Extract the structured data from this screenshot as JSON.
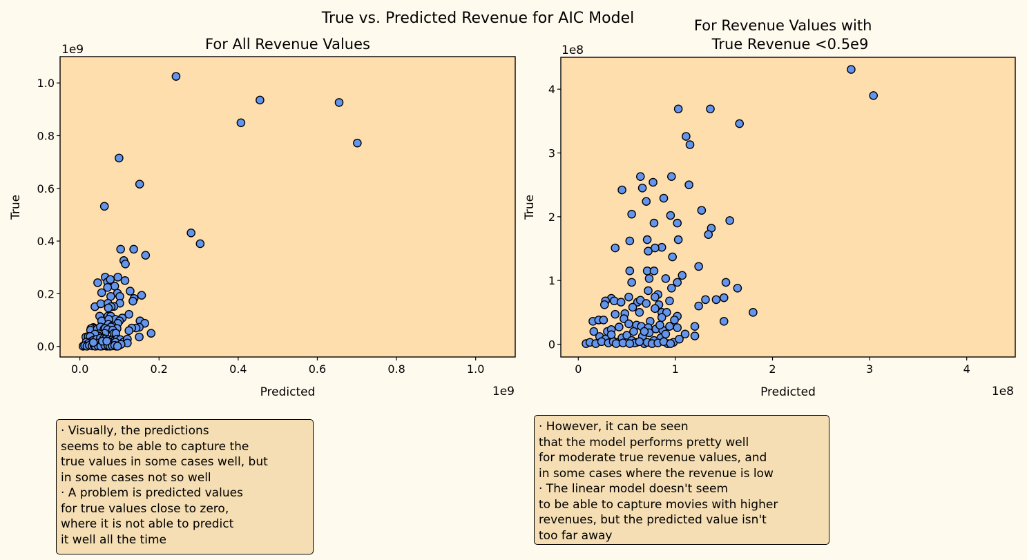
{
  "figure": {
    "suptitle": "True vs. Predicted Revenue for AIC Model",
    "background": "#fffaee",
    "axes_facecolor": "#ffdead",
    "marker_color": "#6495ed",
    "marker_edge": "#000000"
  },
  "chart_data": [
    {
      "type": "scatter",
      "title": "For All Revenue Values",
      "xlabel": "Predicted",
      "ylabel": "True",
      "x_offset_label": "1e9",
      "y_offset_label": "1e9",
      "xlim": [
        -0.05,
        1.1
      ],
      "ylim": [
        -0.04,
        1.1
      ],
      "xticks": [
        0.0,
        0.2,
        0.4,
        0.6,
        0.8,
        1.0
      ],
      "xtick_labels": [
        "0.0",
        "0.2",
        "0.4",
        "0.6",
        "0.8",
        "1.0"
      ],
      "yticks": [
        0.0,
        0.2,
        0.4,
        0.6,
        0.8,
        1.0
      ],
      "ytick_labels": [
        "0.0",
        "0.2",
        "0.4",
        "0.6",
        "0.8",
        "1.0"
      ],
      "grid": false,
      "points": [
        [
          0.243,
          1.025
        ],
        [
          0.455,
          0.935
        ],
        [
          0.655,
          0.926
        ],
        [
          0.407,
          0.849
        ],
        [
          0.701,
          0.772
        ],
        [
          0.099,
          0.715
        ],
        [
          0.151,
          0.616
        ],
        [
          0.062,
          0.532
        ],
        [
          0.281,
          0.431
        ],
        [
          0.304,
          0.39
        ],
        [
          0.103,
          0.369
        ],
        [
          0.136,
          0.369
        ],
        [
          0.111,
          0.326
        ],
        [
          0.166,
          0.346
        ],
        [
          0.115,
          0.313
        ],
        [
          0.064,
          0.263
        ],
        [
          0.096,
          0.263
        ],
        [
          0.07,
          0.245
        ],
        [
          0.077,
          0.254
        ],
        [
          0.045,
          0.242
        ],
        [
          0.114,
          0.25
        ],
        [
          0.088,
          0.229
        ],
        [
          0.07,
          0.224
        ],
        [
          0.095,
          0.202
        ],
        [
          0.127,
          0.21
        ],
        [
          0.101,
          0.19
        ],
        [
          0.055,
          0.204
        ],
        [
          0.078,
          0.19
        ],
        [
          0.156,
          0.194
        ],
        [
          0.137,
          0.182
        ],
        [
          0.134,
          0.172
        ],
        [
          0.038,
          0.151
        ],
        [
          0.053,
          0.162
        ],
        [
          0.071,
          0.164
        ],
        [
          0.101,
          0.164
        ],
        [
          0.086,
          0.152
        ],
        [
          0.079,
          0.151
        ],
        [
          0.072,
          0.146
        ],
        [
          0.124,
          0.122
        ],
        [
          0.05,
          0.115
        ],
        [
          0.071,
          0.115
        ],
        [
          0.078,
          0.115
        ],
        [
          0.09,
          0.103
        ],
        [
          0.055,
          0.097
        ],
        [
          0.073,
          0.103
        ],
        [
          0.107,
          0.108
        ],
        [
          0.152,
          0.097
        ],
        [
          0.1,
          0.097
        ],
        [
          0.164,
          0.088
        ],
        [
          0.096,
          0.088
        ],
        [
          0.15,
          0.073
        ],
        [
          0.142,
          0.07
        ],
        [
          0.072,
          0.084
        ],
        [
          0.131,
          0.07
        ],
        [
          0.082,
          0.078
        ],
        [
          0.079,
          0.074
        ],
        [
          0.034,
          0.072
        ],
        [
          0.037,
          0.068
        ],
        [
          0.028,
          0.068
        ],
        [
          0.027,
          0.062
        ],
        [
          0.044,
          0.066
        ],
        [
          0.052,
          0.074
        ],
        [
          0.18,
          0.05
        ],
        [
          0.124,
          0.06
        ],
        [
          0.061,
          0.066
        ],
        [
          0.064,
          0.069
        ],
        [
          0.094,
          0.068
        ],
        [
          0.07,
          0.064
        ],
        [
          0.083,
          0.062
        ],
        [
          0.086,
          0.05
        ],
        [
          0.091,
          0.05
        ],
        [
          0.063,
          0.05
        ],
        [
          0.048,
          0.048
        ],
        [
          0.047,
          0.04
        ],
        [
          0.038,
          0.047
        ],
        [
          0.015,
          0.036
        ],
        [
          0.021,
          0.038
        ],
        [
          0.026,
          0.038
        ],
        [
          0.03,
          0.02
        ],
        [
          0.034,
          0.023
        ],
        [
          0.042,
          0.027
        ],
        [
          0.052,
          0.032
        ],
        [
          0.06,
          0.03
        ],
        [
          0.065,
          0.028
        ],
        [
          0.072,
          0.026
        ],
        [
          0.08,
          0.024
        ],
        [
          0.087,
          0.022
        ],
        [
          0.094,
          0.028
        ],
        [
          0.102,
          0.026
        ],
        [
          0.11,
          0.016
        ],
        [
          0.12,
          0.028
        ],
        [
          0.12,
          0.013
        ],
        [
          0.15,
          0.036
        ],
        [
          0.016,
          0.016
        ],
        [
          0.022,
          0.012
        ],
        [
          0.028,
          0.008
        ],
        [
          0.035,
          0.006
        ],
        [
          0.04,
          0.003
        ],
        [
          0.045,
          0.01
        ],
        [
          0.05,
          0.014
        ],
        [
          0.055,
          0.006
        ],
        [
          0.06,
          0.003
        ],
        [
          0.066,
          0.012
        ],
        [
          0.073,
          0.018
        ],
        [
          0.078,
          0.006
        ],
        [
          0.085,
          0.01
        ],
        [
          0.09,
          0.016
        ],
        [
          0.098,
          0.003
        ],
        [
          0.104,
          0.008
        ],
        [
          0.092,
          0.001
        ],
        [
          0.068,
          0.001
        ],
        [
          0.058,
          0.002
        ],
        [
          0.008,
          0.001
        ],
        [
          0.012,
          0.003
        ],
        [
          0.018,
          0.001
        ],
        [
          0.024,
          0.004
        ],
        [
          0.031,
          0.002
        ],
        [
          0.036,
          0.004
        ],
        [
          0.039,
          0.001
        ],
        [
          0.046,
          0.002
        ],
        [
          0.053,
          0.001
        ],
        [
          0.063,
          0.004
        ],
        [
          0.071,
          0.003
        ],
        [
          0.076,
          0.001
        ],
        [
          0.082,
          0.002
        ],
        [
          0.088,
          0.004
        ],
        [
          0.095,
          0.001
        ],
        [
          0.034,
          0.015
        ],
        [
          0.057,
          0.02
        ],
        [
          0.068,
          0.02
        ]
      ]
    },
    {
      "type": "scatter",
      "title": "For Revenue Values with\nTrue Revenue <0.5e9",
      "xlabel": "Predicted",
      "ylabel": "True",
      "x_offset_label": "1e8",
      "y_offset_label": "1e8",
      "xlim": [
        -0.18,
        4.5
      ],
      "ylim": [
        -0.2,
        4.5
      ],
      "xticks": [
        0,
        1,
        2,
        3,
        4
      ],
      "xtick_labels": [
        "0",
        "1",
        "2",
        "3",
        "4"
      ],
      "yticks": [
        0,
        1,
        2,
        3,
        4
      ],
      "ytick_labels": [
        "0",
        "1",
        "2",
        "3",
        "4"
      ],
      "grid": false,
      "points": [
        [
          2.81,
          4.31
        ],
        [
          3.04,
          3.9
        ],
        [
          1.03,
          3.69
        ],
        [
          1.36,
          3.69
        ],
        [
          1.66,
          3.46
        ],
        [
          1.11,
          3.26
        ],
        [
          1.15,
          3.13
        ],
        [
          0.64,
          2.63
        ],
        [
          0.96,
          2.63
        ],
        [
          0.77,
          2.54
        ],
        [
          1.14,
          2.5
        ],
        [
          0.66,
          2.45
        ],
        [
          0.45,
          2.42
        ],
        [
          0.7,
          2.24
        ],
        [
          0.88,
          2.29
        ],
        [
          1.27,
          2.1
        ],
        [
          0.95,
          2.02
        ],
        [
          0.55,
          2.04
        ],
        [
          0.78,
          1.9
        ],
        [
          1.02,
          1.9
        ],
        [
          1.56,
          1.94
        ],
        [
          1.37,
          1.82
        ],
        [
          1.34,
          1.72
        ],
        [
          0.38,
          1.51
        ],
        [
          0.53,
          1.62
        ],
        [
          0.71,
          1.64
        ],
        [
          1.03,
          1.64
        ],
        [
          0.86,
          1.52
        ],
        [
          0.79,
          1.51
        ],
        [
          0.72,
          1.46
        ],
        [
          0.97,
          1.37
        ],
        [
          1.24,
          1.22
        ],
        [
          0.53,
          1.15
        ],
        [
          0.71,
          1.15
        ],
        [
          0.78,
          1.15
        ],
        [
          1.07,
          1.08
        ],
        [
          0.9,
          1.03
        ],
        [
          0.55,
          0.97
        ],
        [
          0.73,
          1.03
        ],
        [
          1.52,
          0.97
        ],
        [
          1.02,
          0.97
        ],
        [
          1.64,
          0.88
        ],
        [
          0.96,
          0.88
        ],
        [
          1.5,
          0.73
        ],
        [
          1.42,
          0.7
        ],
        [
          0.72,
          0.84
        ],
        [
          1.31,
          0.7
        ],
        [
          0.82,
          0.78
        ],
        [
          0.79,
          0.74
        ],
        [
          0.34,
          0.72
        ],
        [
          0.37,
          0.68
        ],
        [
          0.28,
          0.68
        ],
        [
          0.27,
          0.62
        ],
        [
          0.44,
          0.66
        ],
        [
          0.52,
          0.74
        ],
        [
          1.8,
          0.5
        ],
        [
          1.24,
          0.6
        ],
        [
          0.61,
          0.66
        ],
        [
          0.64,
          0.69
        ],
        [
          0.94,
          0.68
        ],
        [
          0.7,
          0.64
        ],
        [
          0.83,
          0.62
        ],
        [
          0.86,
          0.5
        ],
        [
          0.91,
          0.5
        ],
        [
          0.63,
          0.5
        ],
        [
          0.48,
          0.48
        ],
        [
          0.47,
          0.4
        ],
        [
          0.38,
          0.47
        ],
        [
          0.15,
          0.36
        ],
        [
          0.21,
          0.38
        ],
        [
          0.26,
          0.38
        ],
        [
          1.5,
          0.36
        ],
        [
          1.02,
          0.44
        ],
        [
          0.86,
          0.42
        ],
        [
          0.74,
          0.36
        ],
        [
          0.3,
          0.2
        ],
        [
          0.34,
          0.23
        ],
        [
          0.42,
          0.27
        ],
        [
          0.52,
          0.32
        ],
        [
          0.6,
          0.3
        ],
        [
          0.65,
          0.28
        ],
        [
          0.72,
          0.26
        ],
        [
          0.8,
          0.24
        ],
        [
          0.87,
          0.22
        ],
        [
          0.94,
          0.28
        ],
        [
          1.02,
          0.26
        ],
        [
          1.1,
          0.16
        ],
        [
          1.2,
          0.28
        ],
        [
          1.2,
          0.13
        ],
        [
          0.16,
          0.2
        ],
        [
          0.22,
          0.12
        ],
        [
          0.28,
          0.08
        ],
        [
          0.35,
          0.06
        ],
        [
          0.4,
          0.03
        ],
        [
          0.45,
          0.1
        ],
        [
          0.5,
          0.14
        ],
        [
          0.55,
          0.06
        ],
        [
          0.6,
          0.03
        ],
        [
          0.66,
          0.12
        ],
        [
          0.73,
          0.18
        ],
        [
          0.78,
          0.06
        ],
        [
          0.85,
          0.1
        ],
        [
          0.9,
          0.16
        ],
        [
          0.98,
          0.03
        ],
        [
          1.04,
          0.08
        ],
        [
          0.92,
          0.01
        ],
        [
          0.68,
          0.01
        ],
        [
          0.58,
          0.02
        ],
        [
          0.08,
          0.01
        ],
        [
          0.12,
          0.03
        ],
        [
          0.18,
          0.01
        ],
        [
          0.24,
          0.04
        ],
        [
          0.31,
          0.02
        ],
        [
          0.36,
          0.04
        ],
        [
          0.39,
          0.01
        ],
        [
          0.46,
          0.02
        ],
        [
          0.53,
          0.01
        ],
        [
          0.63,
          0.04
        ],
        [
          0.71,
          0.03
        ],
        [
          0.76,
          0.01
        ],
        [
          0.82,
          0.02
        ],
        [
          0.88,
          0.04
        ],
        [
          0.95,
          0.01
        ],
        [
          0.34,
          0.15
        ],
        [
          0.57,
          0.2
        ],
        [
          0.68,
          0.2
        ],
        [
          0.84,
          0.3
        ],
        [
          0.99,
          0.38
        ],
        [
          0.56,
          0.58
        ],
        [
          0.79,
          0.56
        ]
      ]
    }
  ],
  "notes": {
    "left": [
      "· Visually, the predictions",
      "seems to be able to capture the",
      "true values in some cases well, but",
      "in some cases not so well",
      "· A problem is predicted values",
      "for true values close to zero,",
      "where it is not able to predict",
      "it well all the time"
    ],
    "right": [
      "· However, it can be seen",
      "that the model performs pretty well",
      "for moderate true revenue values, and",
      "in some cases where the revenue is low",
      "· The linear model doesn't seem",
      "to be able to capture movies with higher",
      "revenues, but the predicted value isn't",
      "too far away"
    ]
  }
}
